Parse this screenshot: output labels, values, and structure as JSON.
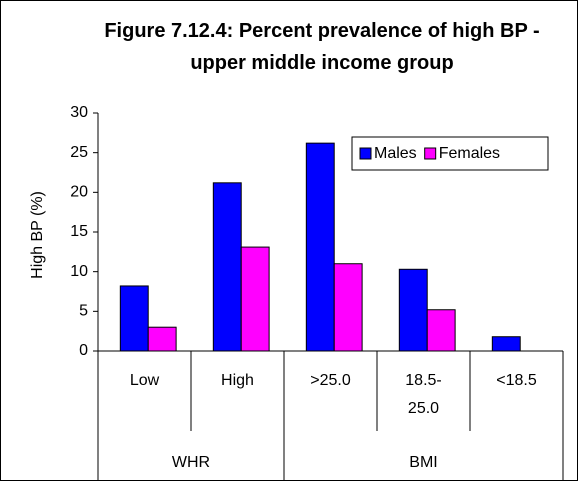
{
  "chart_data": {
    "type": "bar",
    "title": "Figure 7.12.4: Percent prevalence of high BP - upper middle income group",
    "y_label": "High BP (%)",
    "categories": [
      "Low",
      "High",
      ">25.0",
      "18.5-25.0",
      "<18.5"
    ],
    "groups": [
      {
        "name": "WHR",
        "size": 2
      },
      {
        "name": "BMI",
        "size": 3
      }
    ],
    "series": [
      {
        "name": "Males",
        "color": "#0000ff",
        "values": [
          8.2,
          21.2,
          26.2,
          10.3,
          1.8
        ]
      },
      {
        "name": "Females",
        "color": "#ff00ff",
        "values": [
          3.0,
          13.1,
          11.0,
          5.2,
          null
        ]
      }
    ],
    "ylim": [
      0,
      30
    ],
    "yticks": [
      0,
      5,
      10,
      15,
      20,
      25,
      30
    ],
    "legend": "upper right"
  }
}
